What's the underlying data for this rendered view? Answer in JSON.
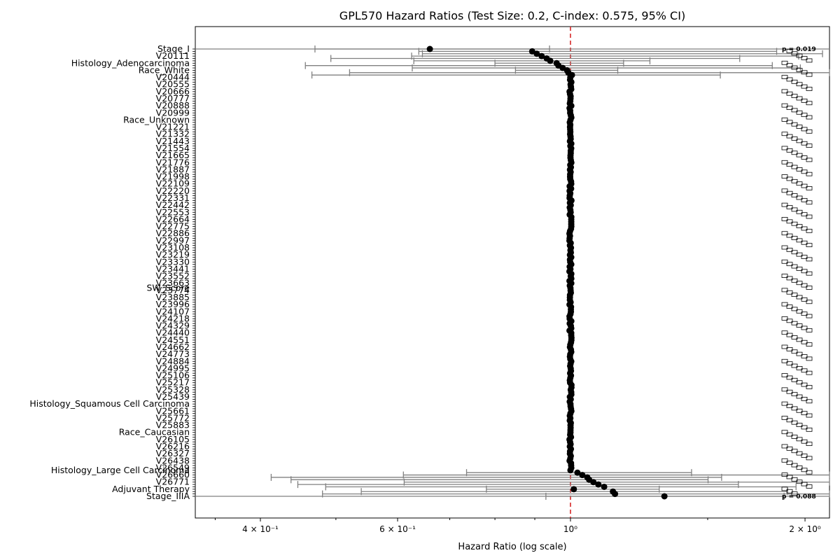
{
  "chart_data": {
    "type": "forest",
    "title": "GPL570 Hazard Ratios (Test Size: 0.2, C-index: 0.575, 95% CI)",
    "xlabel": "Hazard Ratio (log scale)",
    "xscale": "log",
    "xlim": [
      0.33,
      2.15
    ],
    "xticks": [
      {
        "value": 0.4,
        "label": "4 × 10⁻¹"
      },
      {
        "value": 0.6,
        "label": "6 × 10⁻¹"
      },
      {
        "value": 1.0,
        "label": "10⁰"
      },
      {
        "value": 2.0,
        "label": "2 × 10⁰"
      }
    ],
    "reference_line": 1.0,
    "readable_rows": [
      {
        "label": "Stage_I",
        "hr": 0.66,
        "lo": 0.47,
        "hi": 0.94,
        "p": "p = 0.019"
      },
      {
        "label": "Histology_Adenocarcinoma",
        "hr": 0.96,
        "lo": 0.8,
        "hi": 1.17
      },
      {
        "label": "Race_White",
        "hr": 0.99,
        "lo": 0.85,
        "hi": 1.15
      },
      {
        "label": "Race_Unknown",
        "hr": 1.0,
        "lo": 1.0,
        "hi": 1.0
      },
      {
        "label": "SW_Score",
        "hr": 1.0,
        "lo": 1.0,
        "hi": 1.0
      },
      {
        "label": "Histology_Squamous Cell Carcinoma",
        "hr": 1.0,
        "lo": 1.0,
        "hi": 1.0
      },
      {
        "label": "Race_Caucasian",
        "hr": 1.0,
        "lo": 1.0,
        "hi": 1.0
      },
      {
        "label": "Histology_Large Cell Carcinoma",
        "hr": 1.0,
        "lo": 1.0,
        "hi": 1.0
      },
      {
        "label": "Adjuvant Therapy",
        "hr": 1.01,
        "lo": 0.78,
        "hi": 1.3
      },
      {
        "label": "Stage_IIIA",
        "hr": 1.32,
        "lo": 0.93,
        "hi": 1.88,
        "p": "p = 0.088"
      }
    ]
  }
}
